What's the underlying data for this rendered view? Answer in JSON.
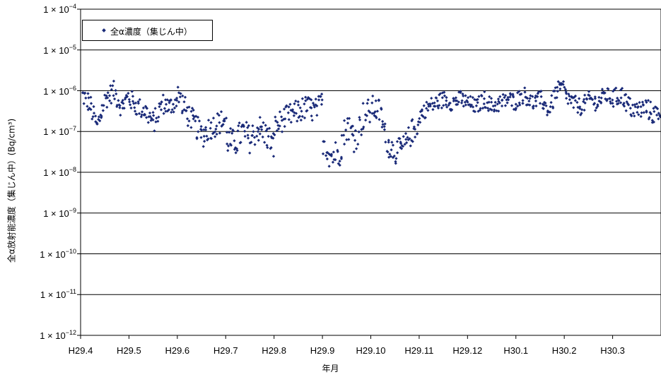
{
  "chart_data": {
    "type": "scatter",
    "title": "",
    "xlabel": "年月",
    "ylabel": "全α放射能濃度（集じん中）(Bq/cm³)",
    "legend": {
      "label": "全α濃度（集じん中）",
      "placement": "top-left"
    },
    "y_scale": "log",
    "ylim": [
      1e-12,
      0.0001
    ],
    "y_ticks": [
      {
        "base": "1 × 10",
        "exp": "−12"
      },
      {
        "base": "1 × 10",
        "exp": "−11"
      },
      {
        "base": "1 × 10",
        "exp": "−10"
      },
      {
        "base": "1 × 10",
        "exp": "−9"
      },
      {
        "base": "1 × 10",
        "exp": "−8"
      },
      {
        "base": "1 × 10",
        "exp": "−7"
      },
      {
        "base": "1 × 10",
        "exp": "−6"
      },
      {
        "base": "1 × 10",
        "exp": "−5"
      },
      {
        "base": "1 × 10",
        "exp": "−4"
      }
    ],
    "x_ticks": [
      "H29.4",
      "H29.5",
      "H29.6",
      "H29.7",
      "H29.8",
      "H29.9",
      "H29.10",
      "H29.11",
      "H29.12",
      "H30.1",
      "H30.2",
      "H30.3"
    ],
    "xlim": [
      "H29.4",
      "H30.4"
    ],
    "grid": "horizontal",
    "marker_color": "#1a2a78",
    "series": [
      {
        "name": "全α濃度（集じん中）",
        "segments": [
          {
            "from": "H29.4",
            "to": "H29.5",
            "points": 70,
            "log_level": [
              -6.1,
              -6.3,
              -6.9,
              -6.2,
              -6.0,
              -6.4,
              -6.1
            ],
            "spread": 0.25
          },
          {
            "from": "H29.5",
            "to": "H29.6",
            "points": 70,
            "log_level": [
              -6.2,
              -6.4,
              -6.5,
              -6.8,
              -6.3,
              -6.4,
              -6.2
            ],
            "spread": 0.25
          },
          {
            "from": "H29.6",
            "to": "H29.7",
            "points": 70,
            "log_level": [
              -6.1,
              -6.5,
              -6.8,
              -7.1,
              -6.9,
              -6.8,
              -6.7
            ],
            "spread": 0.3
          },
          {
            "from": "H29.7",
            "to": "H29.8",
            "points": 70,
            "log_level": [
              -7.2,
              -7.3,
              -7.0,
              -7.2,
              -6.9,
              -7.1,
              -7.4
            ],
            "spread": 0.35
          },
          {
            "from": "H29.8",
            "to": "H29.9",
            "points": 70,
            "log_level": [
              -6.9,
              -6.7,
              -6.6,
              -6.5,
              -6.4,
              -6.5,
              -6.3
            ],
            "spread": 0.3
          },
          {
            "from": "H29.9",
            "to": "H29.10",
            "points": 60,
            "log_level": [
              -7.2,
              -7.6,
              -7.5,
              -6.8,
              -7.2,
              -6.6,
              -6.5
            ],
            "spread": 0.35
          },
          {
            "from": "H29.10",
            "to": "H29.11",
            "points": 70,
            "log_level": [
              -6.4,
              -6.5,
              -7.3,
              -7.5,
              -7.4,
              -7.0,
              -6.8
            ],
            "spread": 0.3
          },
          {
            "from": "H29.11",
            "to": "H29.12",
            "points": 70,
            "log_level": [
              -6.6,
              -6.4,
              -6.3,
              -6.2,
              -6.3,
              -6.2,
              -6.3
            ],
            "spread": 0.2
          },
          {
            "from": "H29.12",
            "to": "H30.1",
            "points": 70,
            "log_level": [
              -6.3,
              -6.4,
              -6.2,
              -6.4,
              -6.3,
              -6.2,
              -6.3
            ],
            "spread": 0.2
          },
          {
            "from": "H30.1",
            "to": "H30.2",
            "points": 70,
            "log_level": [
              -6.2,
              -6.1,
              -6.3,
              -6.2,
              -6.5,
              -6.0,
              -5.9
            ],
            "spread": 0.2
          },
          {
            "from": "H30.2",
            "to": "H30.3",
            "points": 70,
            "log_level": [
              -6.1,
              -6.3,
              -6.4,
              -6.2,
              -6.3,
              -6.1,
              -6.2
            ],
            "spread": 0.2
          },
          {
            "from": "H30.3",
            "to": "H30.4",
            "points": 70,
            "log_level": [
              -6.2,
              -6.1,
              -6.4,
              -6.5,
              -6.4,
              -6.6,
              -6.5
            ],
            "spread": 0.25
          }
        ]
      }
    ]
  }
}
